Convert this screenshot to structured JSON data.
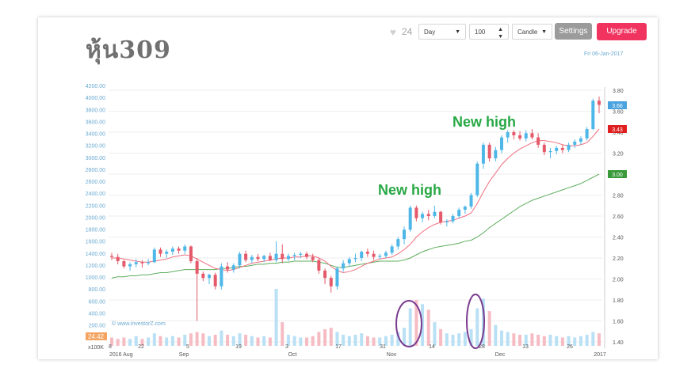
{
  "page": {
    "title": "หุ้น309",
    "date_label": "Fri 06-Jan-2017",
    "watermark": "© www.investorZ.com"
  },
  "toolbar": {
    "likes": "24",
    "heart_icon": "heart-icon",
    "period": "Day",
    "count": "100",
    "chart_style": "Candle",
    "settings_label": "Settings",
    "upgrade_label": "Upgrade",
    "colors": {
      "settings_bg": "#9b9b9b",
      "upgrade_bg": "#f0335f"
    }
  },
  "chart_data": {
    "type": "candlestick",
    "left_axis": {
      "ticks": [
        "200.00",
        "400.00",
        "600.00",
        "800.00",
        "1000.00",
        "1200.00",
        "1400.00",
        "1600.00",
        "1800.00",
        "2000.00",
        "2200.00",
        "2400.00",
        "2600.00",
        "2800.00",
        "3000.00",
        "3200.00",
        "3400.00",
        "3600.00",
        "3800.00",
        "4000.00",
        "4200.00"
      ],
      "range": [
        0,
        4200
      ]
    },
    "right_axis": {
      "ticks": [
        "1.40",
        "1.60",
        "1.80",
        "2.00",
        "2.20",
        "2.40",
        "2.60",
        "2.80",
        "3.00",
        "3.20",
        "3.40",
        "3.60",
        "3.80"
      ],
      "range": [
        1.4,
        3.8
      ]
    },
    "volume_label": "24.42",
    "volume_unit": "x100K",
    "x_ticks": [
      "8",
      "22",
      "5",
      "19",
      "3",
      "17",
      "31",
      "14",
      "28",
      "13",
      "26"
    ],
    "x_month_labels": [
      "2016 Aug",
      "Sep",
      "Oct",
      "Nov",
      "Dec",
      "2017"
    ],
    "price_badges": [
      {
        "value": "3.66",
        "color": "#4aa3df"
      },
      {
        "value": "3.43",
        "color": "#e02020"
      },
      {
        "value": "3.00",
        "color": "#3a9a3a"
      }
    ],
    "annotations": [
      "New high",
      "New high"
    ],
    "colors": {
      "up": "#4fb7e8",
      "down": "#e45a6a",
      "ma_fast": "#ef6f7f",
      "ma_slow": "#5fae5f",
      "annotation": "#27a844",
      "circle": "#7a3b8f",
      "axis_text": "#6aa9d1"
    },
    "ohlc": [
      [
        2.22,
        2.25,
        2.18,
        2.21
      ],
      [
        2.21,
        2.24,
        2.14,
        2.17
      ],
      [
        2.17,
        2.18,
        2.1,
        2.12
      ],
      [
        2.12,
        2.16,
        2.08,
        2.14
      ],
      [
        2.14,
        2.19,
        2.11,
        2.16
      ],
      [
        2.16,
        2.18,
        2.11,
        2.15
      ],
      [
        2.15,
        2.19,
        2.13,
        2.16
      ],
      [
        2.16,
        2.3,
        2.15,
        2.28
      ],
      [
        2.28,
        2.3,
        2.21,
        2.24
      ],
      [
        2.24,
        2.28,
        2.2,
        2.26
      ],
      [
        2.26,
        2.31,
        2.23,
        2.29
      ],
      [
        2.29,
        2.31,
        2.24,
        2.27
      ],
      [
        2.27,
        2.33,
        2.24,
        2.31
      ],
      [
        2.31,
        2.32,
        2.15,
        2.17
      ],
      [
        2.17,
        2.2,
        1.6,
        2.05
      ],
      [
        2.05,
        2.07,
        1.98,
        2.01
      ],
      [
        2.01,
        2.05,
        1.95,
        2.04
      ],
      [
        2.04,
        2.06,
        1.9,
        1.93
      ],
      [
        1.93,
        2.15,
        1.9,
        2.12
      ],
      [
        2.12,
        2.16,
        2.06,
        2.09
      ],
      [
        2.09,
        2.15,
        2.06,
        2.13
      ],
      [
        2.13,
        2.26,
        2.1,
        2.24
      ],
      [
        2.24,
        2.27,
        2.16,
        2.18
      ],
      [
        2.18,
        2.23,
        2.15,
        2.21
      ],
      [
        2.21,
        2.24,
        2.17,
        2.19
      ],
      [
        2.19,
        2.23,
        2.16,
        2.22
      ],
      [
        2.22,
        2.25,
        2.17,
        2.18
      ],
      [
        2.18,
        2.36,
        2.16,
        2.24
      ],
      [
        2.24,
        2.33,
        2.15,
        2.19
      ],
      [
        2.19,
        2.24,
        2.17,
        2.22
      ],
      [
        2.22,
        2.25,
        2.18,
        2.23
      ],
      [
        2.23,
        2.26,
        2.2,
        2.24
      ],
      [
        2.24,
        2.26,
        2.19,
        2.21
      ],
      [
        2.21,
        2.24,
        2.16,
        2.18
      ],
      [
        2.18,
        2.2,
        2.05,
        2.08
      ],
      [
        2.08,
        2.1,
        1.95,
        2.01
      ],
      [
        2.01,
        2.03,
        1.87,
        1.93
      ],
      [
        1.93,
        2.12,
        1.9,
        2.1
      ],
      [
        2.1,
        2.18,
        2.07,
        2.15
      ],
      [
        2.15,
        2.21,
        2.12,
        2.19
      ],
      [
        2.19,
        2.24,
        2.16,
        2.2
      ],
      [
        2.2,
        2.27,
        2.17,
        2.26
      ],
      [
        2.26,
        2.29,
        2.21,
        2.24
      ],
      [
        2.24,
        2.27,
        2.18,
        2.21
      ],
      [
        2.21,
        2.24,
        2.19,
        2.22
      ],
      [
        2.22,
        2.27,
        2.2,
        2.25
      ],
      [
        2.25,
        2.33,
        2.23,
        2.31
      ],
      [
        2.31,
        2.4,
        2.28,
        2.38
      ],
      [
        2.38,
        2.5,
        2.33,
        2.47
      ],
      [
        2.47,
        2.7,
        2.45,
        2.68
      ],
      [
        2.68,
        2.7,
        2.55,
        2.58
      ],
      [
        2.58,
        2.64,
        2.54,
        2.62
      ],
      [
        2.62,
        2.66,
        2.56,
        2.6
      ],
      [
        2.6,
        2.7,
        2.58,
        2.64
      ],
      [
        2.64,
        2.65,
        2.52,
        2.54
      ],
      [
        2.54,
        2.57,
        2.5,
        2.55
      ],
      [
        2.55,
        2.62,
        2.53,
        2.6
      ],
      [
        2.6,
        2.68,
        2.58,
        2.66
      ],
      [
        2.66,
        2.7,
        2.62,
        2.69
      ],
      [
        2.69,
        2.82,
        2.67,
        2.8
      ],
      [
        2.8,
        3.12,
        2.78,
        3.1
      ],
      [
        3.1,
        3.3,
        3.05,
        3.28
      ],
      [
        3.28,
        3.3,
        3.12,
        3.15
      ],
      [
        3.15,
        3.26,
        3.12,
        3.23
      ],
      [
        3.23,
        3.37,
        3.2,
        3.35
      ],
      [
        3.35,
        3.42,
        3.3,
        3.4
      ],
      [
        3.4,
        3.42,
        3.33,
        3.37
      ],
      [
        3.37,
        3.41,
        3.32,
        3.34
      ],
      [
        3.34,
        3.42,
        3.31,
        3.39
      ],
      [
        3.39,
        3.43,
        3.33,
        3.35
      ],
      [
        3.35,
        3.39,
        3.25,
        3.28
      ],
      [
        3.28,
        3.3,
        3.18,
        3.21
      ],
      [
        3.21,
        3.25,
        3.15,
        3.22
      ],
      [
        3.22,
        3.27,
        3.19,
        3.25
      ],
      [
        3.25,
        3.28,
        3.2,
        3.23
      ],
      [
        3.23,
        3.3,
        3.21,
        3.28
      ],
      [
        3.28,
        3.33,
        3.25,
        3.31
      ],
      [
        3.31,
        3.36,
        3.28,
        3.34
      ],
      [
        3.34,
        3.45,
        3.32,
        3.43
      ],
      [
        3.43,
        3.72,
        3.42,
        3.7
      ],
      [
        3.7,
        3.74,
        3.58,
        3.66
      ]
    ],
    "volume": [
      0.6,
      0.5,
      0.6,
      0.5,
      0.7,
      0.5,
      0.6,
      0.9,
      0.7,
      0.6,
      0.7,
      0.6,
      0.8,
      0.9,
      1.0,
      0.9,
      0.7,
      0.8,
      1.1,
      0.8,
      0.7,
      0.9,
      0.8,
      0.7,
      0.6,
      0.7,
      0.6,
      4.1,
      1.7,
      0.8,
      0.7,
      0.6,
      0.6,
      0.7,
      1.0,
      1.2,
      1.3,
      1.0,
      0.8,
      0.7,
      0.8,
      0.9,
      0.7,
      0.6,
      0.6,
      0.7,
      0.8,
      1.0,
      1.3,
      2.7,
      3.3,
      3.0,
      2.6,
      1.7,
      1.2,
      0.9,
      0.8,
      0.9,
      1.0,
      1.2,
      2.7,
      3.4,
      2.5,
      1.5,
      1.1,
      1.0,
      0.9,
      0.8,
      0.8,
      0.9,
      0.8,
      0.7,
      0.8,
      0.7,
      0.6,
      0.7,
      0.6,
      0.7,
      0.8,
      1.0,
      0.9
    ],
    "ma_fast": [
      2.2,
      2.2,
      2.19,
      2.18,
      2.17,
      2.16,
      2.16,
      2.17,
      2.18,
      2.19,
      2.21,
      2.22,
      2.23,
      2.22,
      2.19,
      2.16,
      2.13,
      2.1,
      2.09,
      2.08,
      2.09,
      2.11,
      2.13,
      2.15,
      2.16,
      2.17,
      2.18,
      2.19,
      2.2,
      2.2,
      2.21,
      2.21,
      2.22,
      2.22,
      2.2,
      2.17,
      2.12,
      2.08,
      2.06,
      2.07,
      2.09,
      2.12,
      2.15,
      2.17,
      2.19,
      2.2,
      2.21,
      2.24,
      2.28,
      2.33,
      2.4,
      2.45,
      2.49,
      2.52,
      2.54,
      2.55,
      2.56,
      2.58,
      2.6,
      2.63,
      2.72,
      2.83,
      2.93,
      3.01,
      3.09,
      3.15,
      3.2,
      3.24,
      3.27,
      3.3,
      3.32,
      3.32,
      3.31,
      3.3,
      3.28,
      3.27,
      3.27,
      3.28,
      3.3,
      3.36,
      3.43
    ],
    "ma_slow": [
      2.01,
      2.02,
      2.02,
      2.03,
      2.03,
      2.04,
      2.04,
      2.05,
      2.06,
      2.06,
      2.07,
      2.08,
      2.09,
      2.09,
      2.09,
      2.09,
      2.09,
      2.09,
      2.1,
      2.1,
      2.11,
      2.12,
      2.12,
      2.13,
      2.14,
      2.14,
      2.15,
      2.15,
      2.16,
      2.16,
      2.17,
      2.17,
      2.17,
      2.17,
      2.16,
      2.15,
      2.13,
      2.11,
      2.11,
      2.12,
      2.13,
      2.14,
      2.15,
      2.16,
      2.17,
      2.17,
      2.17,
      2.17,
      2.18,
      2.2,
      2.23,
      2.26,
      2.28,
      2.3,
      2.31,
      2.32,
      2.33,
      2.34,
      2.36,
      2.37,
      2.4,
      2.44,
      2.49,
      2.53,
      2.57,
      2.61,
      2.65,
      2.69,
      2.72,
      2.75,
      2.77,
      2.79,
      2.81,
      2.83,
      2.85,
      2.87,
      2.89,
      2.91,
      2.94,
      2.97,
      3.0
    ]
  }
}
